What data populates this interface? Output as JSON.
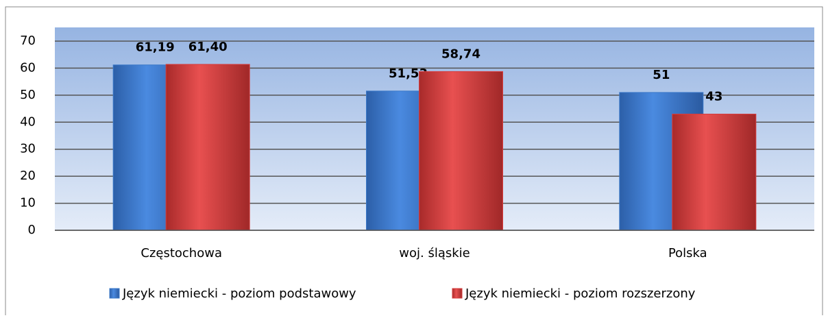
{
  "chart_data": {
    "type": "bar",
    "categories": [
      "Częstochowa",
      "woj. śląskie",
      "Polska"
    ],
    "series": [
      {
        "name": "Język niemiecki - poziom podstawowy",
        "color": "#3a78c8",
        "values": [
          61.19,
          51.53,
          51
        ],
        "value_labels": [
          "61,19",
          "51,53",
          "51"
        ]
      },
      {
        "name": "Język niemiecki - poziom rozszerzony",
        "color": "#d63c3c",
        "values": [
          61.4,
          58.74,
          43
        ],
        "value_labels": [
          "61,40",
          "58,74",
          "43"
        ]
      }
    ],
    "ylim": [
      0,
      70
    ],
    "yticks": [
      0,
      10,
      20,
      30,
      40,
      50,
      60,
      70
    ],
    "grid": true,
    "legend": "bottom"
  }
}
